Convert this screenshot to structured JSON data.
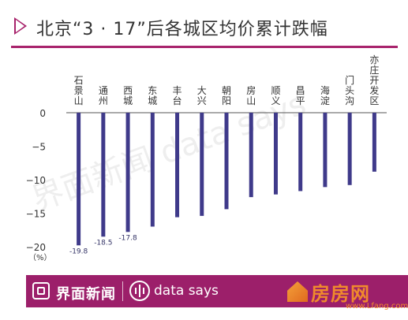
{
  "title": "北京“3 · 17”后各城区均价累计跌幅",
  "watermark_text": "界面新闻  data says",
  "footer": {
    "brand": "界面新闻",
    "ds_text": "data says"
  },
  "site_mark": {
    "name": "房房网",
    "url": "www.Lfang.com"
  },
  "colors": {
    "accent": "#a8236c",
    "footer_bg": "#9c1f6a",
    "bar": "#3f3a8a"
  },
  "chart_data": {
    "type": "bar",
    "categories": [
      "石景山",
      "通州",
      "西城",
      "东城",
      "丰台",
      "大兴",
      "朝阳",
      "房山",
      "顺义",
      "昌平",
      "海淀",
      "门头沟",
      "亦庄开发区"
    ],
    "values": [
      -19.8,
      -18.5,
      -17.8,
      -17.0,
      -15.6,
      -15.4,
      -14.4,
      -12.6,
      -12.2,
      -11.7,
      -11.1,
      -10.8,
      -8.8
    ],
    "data_labels": [
      "-19.8",
      "-18.5",
      "-17.8",
      null,
      null,
      null,
      null,
      null,
      null,
      null,
      null,
      null,
      null
    ],
    "ylim": [
      -20,
      0
    ],
    "yticks": [
      "0",
      "−5",
      "−10",
      "−15",
      "−20"
    ],
    "ytick_values": [
      0,
      -5,
      -10,
      -15,
      -20
    ],
    "unit": "（%）",
    "xlabel": "",
    "ylabel": "",
    "grid": false
  }
}
